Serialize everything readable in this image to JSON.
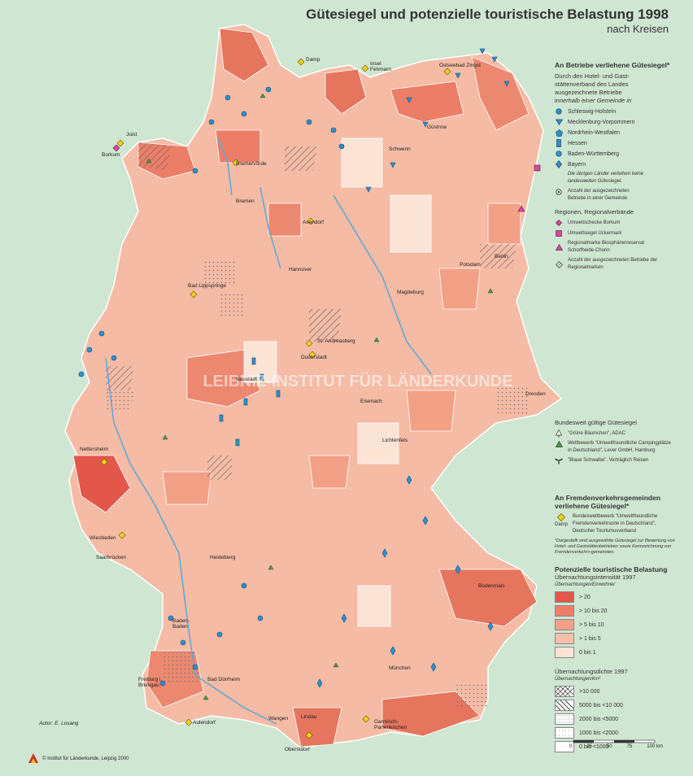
{
  "title": "Gütesiegel und potenzielle touristische Belastung 1998",
  "subtitle": "nach Kreisen",
  "legend": {
    "betriebe": {
      "heading": "An Betriebe verliehene Gütesiegel*",
      "intro1": "Durch den Hotel- und Gast-",
      "intro2": "stättenverband des Landes",
      "intro3": "ausgezeichnete Betriebe",
      "intro4": "innerhalb einer Gemeinde in",
      "items": [
        "Schleswig-Holstein",
        "Mecklenburg-Vorpommern",
        "Nordrhein-Westfalen",
        "Hessen",
        "Baden-Württemberg",
        "Bayern"
      ],
      "note1": "Die übrigen Länder verleihen keine",
      "note2": "landesweiten Gütesiegel.",
      "anzahl1": "Anzahl der ausgezeichneten",
      "anzahl2": "Betriebe in einer Gemeinde"
    },
    "regionen": {
      "heading": "Regionen, Regionalverbände",
      "items": [
        "Umweltschecke Borkum",
        "Umweltsiegel Uckermark",
        "Regionalmarke Biosphärenreservat Schorfheide-Chorin",
        "Anzahl der ausgezeichneten Betriebe der Regionalmarken"
      ]
    },
    "bundesweit": {
      "heading": "Bundesweit gültige Gütesiegel",
      "items": [
        "\"Grüne Bäumchen\", ADAC",
        "Wettbewerb \"Umweltfreundliche Campingplätze in Deutschland\", Lever GmbH, Hamburg",
        "\"Blaue Schwalbe\", Verträglich Reisen"
      ]
    },
    "fremden": {
      "heading1": "An Fremdenverkehrsgemeinden",
      "heading2": "verliehene Gütesiegel*",
      "item": "Bundeswettbewerb \"Umweltfreundliche Fremdenverkehrsorte in Deutschland\", Deutscher Tourismusverband",
      "example": "Damp",
      "footnote": "*Dargestellt sind ausgewählte Gütesiegel zur Bewertung von Hotel- und Gaststättenbetrieben sowie Kennzeichnung von Fremdenverkehrs-gemeinden."
    },
    "belastung": {
      "heading": "Potenzielle touristische Belastung",
      "intensitaet_title": "Übernachtungsintensität 1997",
      "intensitaet_unit": "Übernachtungen/Einwohner",
      "classes": [
        {
          "label": "> 20",
          "color": "#e2574a"
        },
        {
          "label": "> 10  bis  20",
          "color": "#ec7e68"
        },
        {
          "label": ">   5  bis  10",
          "color": "#f2a086"
        },
        {
          "label": ">   1  bis    5",
          "color": "#f6c0aa"
        },
        {
          "label": "0  bis    1",
          "color": "#fbe3d6"
        }
      ],
      "dichte_title": "Übernachtungsdichte 1997",
      "dichte_unit": "Übernachtungen/km²",
      "dichte_classes": [
        ">10 000",
        "5000  bis  <10 000",
        "2000  bis  <5000",
        "1000  bis  <2000",
        "0  bis  <1000"
      ]
    },
    "scale": {
      "ticks": [
        "0",
        "25",
        "50",
        "75",
        "100 km"
      ]
    }
  },
  "cities": [
    "Damp",
    "Insel Fehmarn",
    "Ostseebad Zingst",
    "Juist",
    "Borkum",
    "Güstrow",
    "Schwerin",
    "Bremervörde",
    "Bremen",
    "Asendorf",
    "Berlin",
    "Potsdam",
    "Hannover",
    "Magdeburg",
    "Bad Lippspringe",
    "St. Andreasberg",
    "Duderstadt",
    "Dresden",
    "Neustadt",
    "Eisenach",
    "Lichtenfels",
    "Nettersheim",
    "Wiesbaden",
    "Saarbrücken",
    "Heidelberg",
    "Bodenmais",
    "Baden-Baden",
    "Bad Dürrheim",
    "Freiburg i. Breisgau",
    "Aulendorf",
    "Lindau",
    "Oberstdorf",
    "Garmisch-Partenkirchen",
    "München",
    "Wangen"
  ],
  "author": "Autor:  E. Losang",
  "copyright": "© Institut für Länderkunde, Leipzig 2000",
  "watermark": "LEIBNIZ-INSTITUT FÜR LÄNDERKUNDE"
}
